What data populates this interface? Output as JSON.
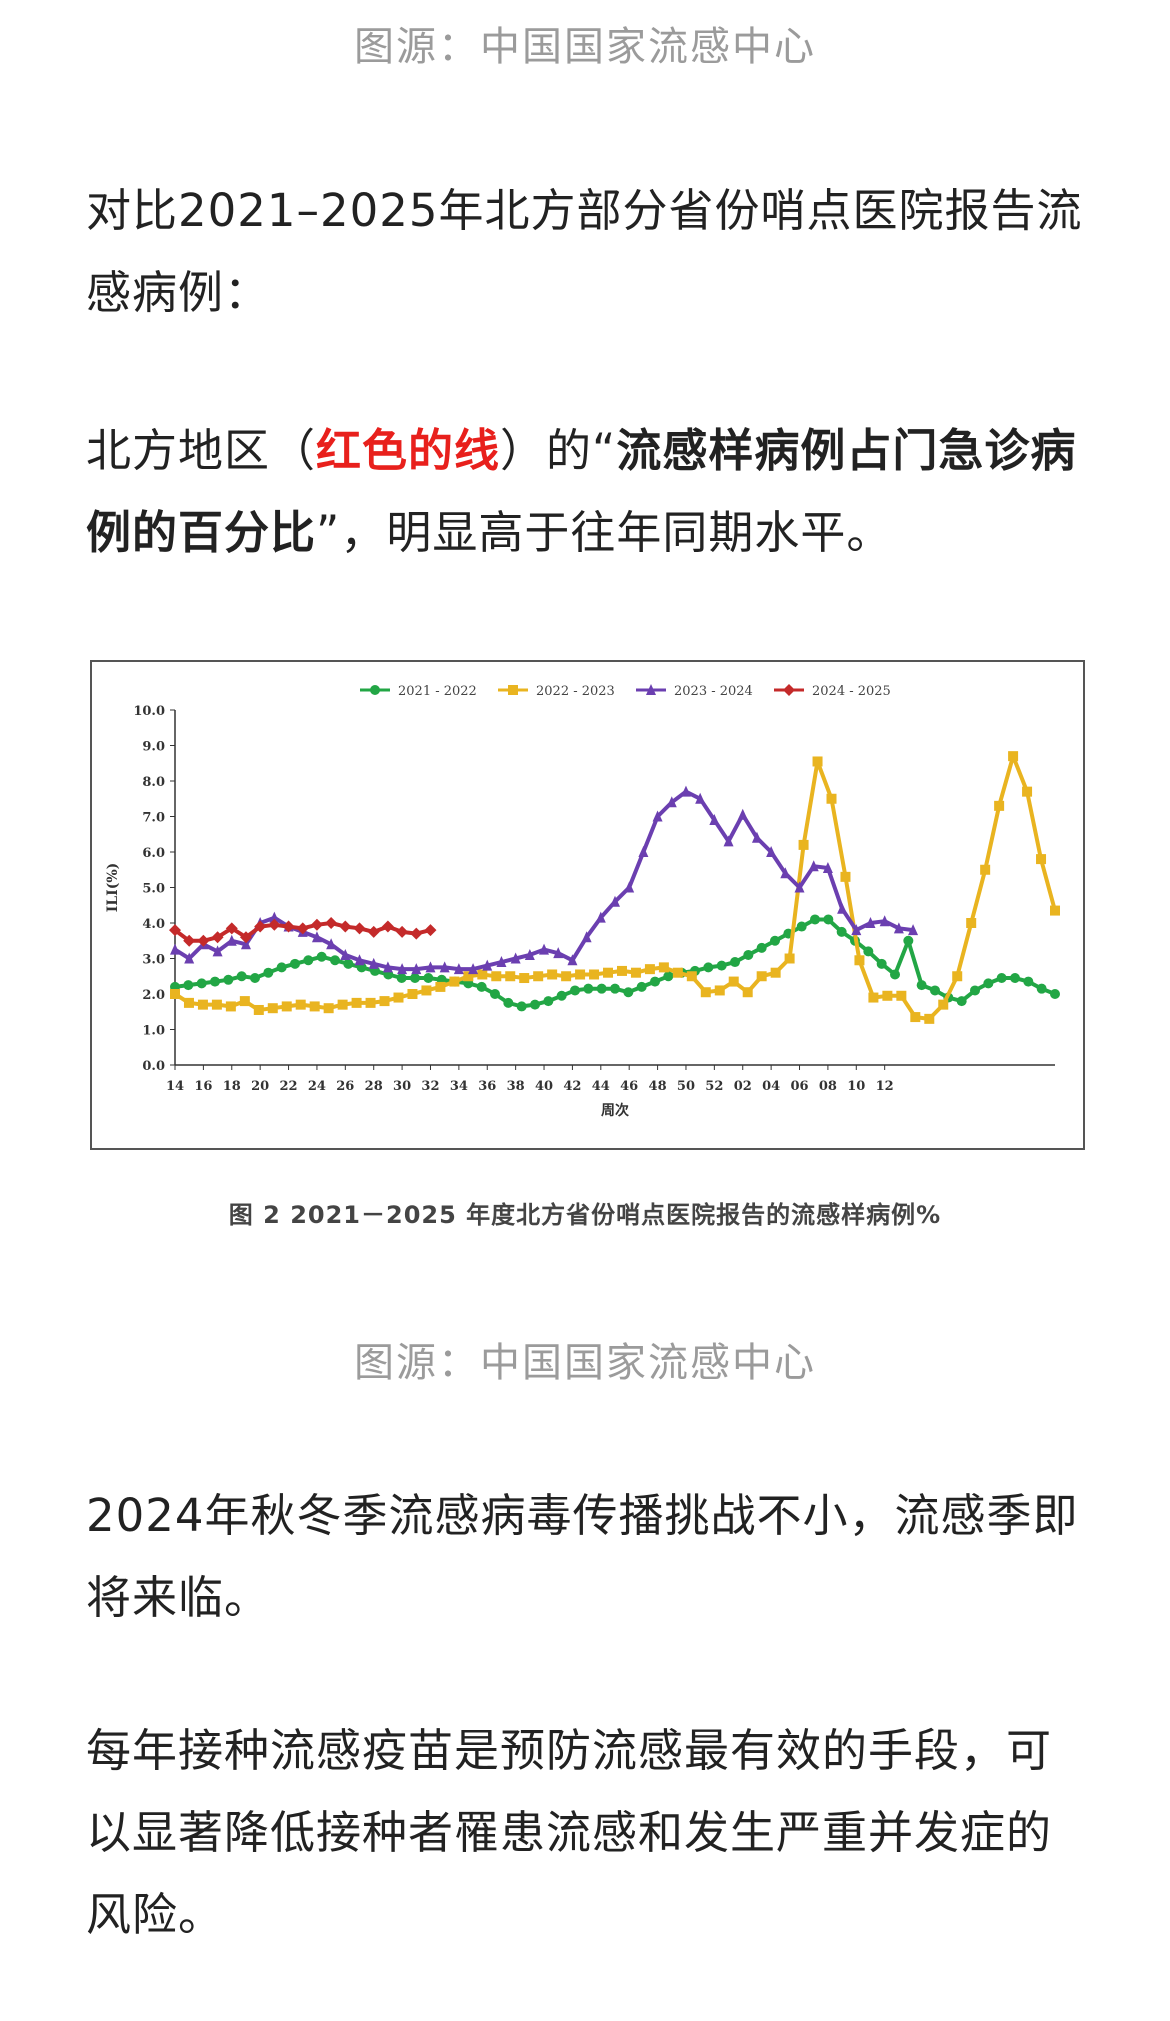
{
  "captions": {
    "top": "图源：中国国家流感中心",
    "middle": "图源：中国国家流感中心"
  },
  "paragraphs": {
    "p1": "对比2021–2025年北方部分省份哨点医院报告流感病例：",
    "p2_before": "北方地区（",
    "p2_red": "红色的线",
    "p2_mid": "）的“",
    "p2_bold": "流感样病例占门急诊病例的百分比",
    "p2_after": "”，明显高于往年同期水平。",
    "p3": "2024年秋冬季流感病毒传播挑战不小，流感季即将来临。",
    "p4": "每年接种流感疫苗是预防流感最有效的手段，可以显著降低接种者罹患流感和发生严重并发症的风险。"
  },
  "figure_caption": "图 2   2021－2025 年度北方省份哨点医院报告的流感样病例%",
  "chart_data": {
    "type": "line",
    "xlabel": "周次",
    "ylabel": "ILI(%)",
    "ylim": [
      0,
      10
    ],
    "yticks": [
      "0.0",
      "1.0",
      "2.0",
      "3.0",
      "4.0",
      "5.0",
      "6.0",
      "7.0",
      "8.0",
      "9.0",
      "10.0"
    ],
    "x_tick_labels": [
      "14",
      "16",
      "18",
      "20",
      "22",
      "24",
      "26",
      "28",
      "30",
      "32",
      "34",
      "36",
      "38",
      "40",
      "42",
      "44",
      "46",
      "48",
      "50",
      "52",
      "02",
      "04",
      "06",
      "08",
      "10",
      "12"
    ],
    "week_count": 52,
    "legend_position": "top",
    "series": [
      {
        "name": "2021 - 2022",
        "color": "#22a645",
        "marker": "circle",
        "values": [
          2.2,
          2.25,
          2.3,
          2.35,
          2.4,
          2.5,
          2.45,
          2.6,
          2.75,
          2.85,
          2.95,
          3.05,
          2.95,
          2.85,
          2.75,
          2.65,
          2.55,
          2.45,
          2.45,
          2.45,
          2.4,
          2.35,
          2.3,
          2.2,
          2.0,
          1.75,
          1.65,
          1.7,
          1.8,
          1.95,
          2.1,
          2.15,
          2.15,
          2.15,
          2.05,
          2.2,
          2.35,
          2.5,
          2.6,
          2.65,
          2.75,
          2.8,
          2.9,
          3.1,
          3.3,
          3.5,
          3.7,
          3.9,
          4.1,
          4.1,
          3.75,
          3.5,
          3.2,
          2.85,
          2.55,
          3.5,
          2.25,
          2.1,
          1.9,
          1.8,
          2.1,
          2.3,
          2.45,
          2.45,
          2.35,
          2.15,
          2.0
        ]
      },
      {
        "name": "2022 - 2023",
        "color": "#e9b420",
        "marker": "square",
        "values": [
          2.0,
          1.75,
          1.7,
          1.7,
          1.65,
          1.8,
          1.55,
          1.6,
          1.65,
          1.7,
          1.65,
          1.6,
          1.7,
          1.75,
          1.75,
          1.8,
          1.9,
          2.0,
          2.1,
          2.2,
          2.35,
          2.5,
          2.55,
          2.5,
          2.5,
          2.45,
          2.5,
          2.55,
          2.5,
          2.55,
          2.55,
          2.6,
          2.65,
          2.6,
          2.7,
          2.75,
          2.6,
          2.5,
          2.05,
          2.1,
          2.35,
          2.05,
          2.5,
          2.6,
          3.0,
          6.2,
          8.55,
          7.5,
          5.3,
          2.95,
          1.9,
          1.95,
          1.95,
          1.35,
          1.3,
          1.7,
          2.5,
          4.0,
          5.5,
          7.3,
          8.7,
          7.7,
          5.8,
          4.35
        ]
      },
      {
        "name": "2023 - 2024",
        "color": "#6b3fb0",
        "marker": "triangle",
        "values": [
          3.25,
          3.0,
          3.4,
          3.2,
          3.5,
          3.4,
          4.0,
          4.15,
          3.9,
          3.75,
          3.6,
          3.4,
          3.1,
          2.95,
          2.85,
          2.75,
          2.7,
          2.7,
          2.75,
          2.75,
          2.7,
          2.7,
          2.8,
          2.9,
          3.0,
          3.1,
          3.25,
          3.15,
          2.95,
          3.6,
          4.15,
          4.6,
          5.0,
          6.0,
          7.0,
          7.4,
          7.7,
          7.5,
          6.9,
          6.3,
          7.05,
          6.4,
          6.0,
          5.4,
          5.0,
          5.6,
          5.55,
          4.4,
          3.8,
          4.0,
          4.05,
          3.85,
          3.8
        ]
      },
      {
        "name": "2024 - 2025",
        "color": "#c42a2a",
        "marker": "diamond",
        "values": [
          3.8,
          3.5,
          3.5,
          3.6,
          3.85,
          3.6,
          3.9,
          3.95,
          3.9,
          3.85,
          3.95,
          4.0,
          3.9,
          3.85,
          3.75,
          3.9,
          3.75,
          3.7,
          3.8
        ]
      }
    ]
  }
}
